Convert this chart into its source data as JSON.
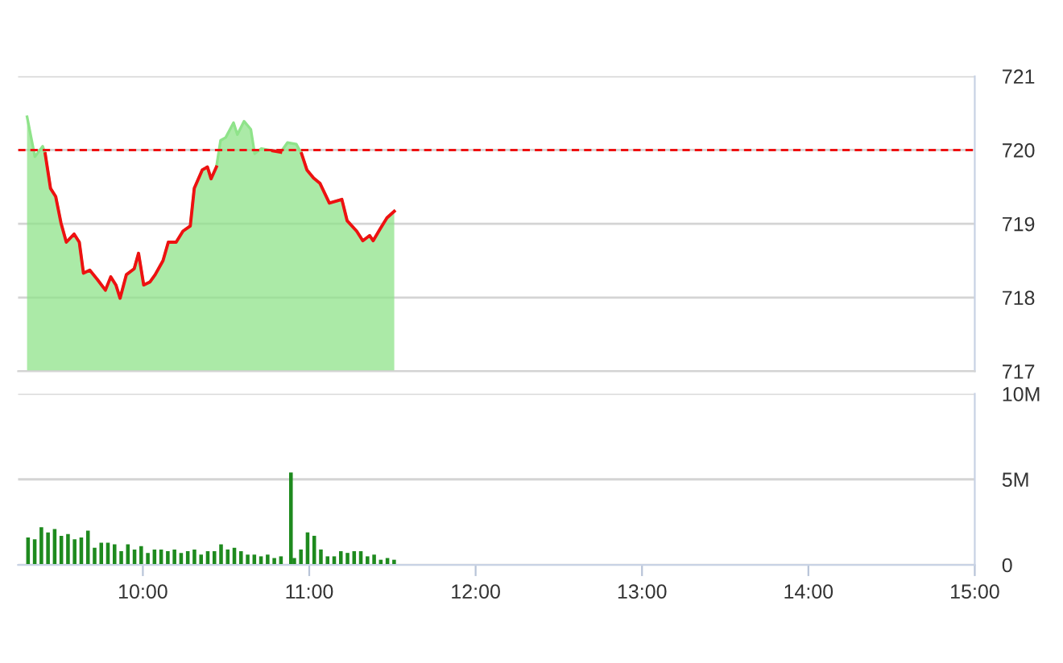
{
  "chart_data": [
    {
      "type": "area",
      "x": [
        9.304,
        9.351,
        9.398,
        9.413,
        9.445,
        9.476,
        9.508,
        9.54,
        9.587,
        9.618,
        9.643,
        9.681,
        9.728,
        9.775,
        9.807,
        9.838,
        9.863,
        9.901,
        9.948,
        9.974,
        10.005,
        10.042,
        10.074,
        10.121,
        10.153,
        10.2,
        10.241,
        10.285,
        10.309,
        10.357,
        10.388,
        10.41,
        10.442,
        10.467,
        10.498,
        10.545,
        10.568,
        10.608,
        10.649,
        10.672,
        10.712,
        10.781,
        10.828,
        10.869,
        10.922,
        10.954,
        10.986,
        11.026,
        11.064,
        11.121,
        11.196,
        11.228,
        11.285,
        11.322,
        11.363,
        11.384,
        11.426,
        11.467,
        11.511
      ],
      "series": [
        {
          "type": "area",
          "color": "#8fe38a",
          "values": [
            720.45,
            719.91,
            720.05,
            719.95,
            719.48,
            719.37,
            719.01,
            718.75,
            718.86,
            718.75,
            718.33,
            718.37,
            718.24,
            718.1,
            718.28,
            718.17,
            717.99,
            718.31,
            718.39,
            718.6,
            718.17,
            718.21,
            718.31,
            718.5,
            718.75,
            718.75,
            718.9,
            718.97,
            719.48,
            719.73,
            719.77,
            719.61,
            719.77,
            720.13,
            720.17,
            720.37,
            720.21,
            720.39,
            720.28,
            719.95,
            720.02,
            719.99,
            719.97,
            720.1,
            720.08,
            719.95,
            719.73,
            719.62,
            719.55,
            719.28,
            719.33,
            719.04,
            718.9,
            718.77,
            718.84,
            718.77,
            718.93,
            719.08,
            719.17
          ]
        },
        {
          "type": "line",
          "color": "#ee1111",
          "values": [
            null,
            null,
            null,
            719.95,
            719.48,
            719.37,
            719.01,
            718.75,
            718.86,
            718.75,
            718.33,
            718.37,
            718.24,
            718.1,
            718.28,
            718.17,
            717.99,
            718.31,
            718.39,
            718.6,
            718.17,
            718.21,
            718.31,
            718.5,
            718.75,
            718.75,
            718.9,
            718.97,
            719.48,
            719.73,
            719.77,
            719.61,
            719.77,
            null,
            null,
            null,
            null,
            null,
            null,
            null,
            null,
            719.99,
            719.97,
            null,
            null,
            719.95,
            719.73,
            719.62,
            719.55,
            719.28,
            719.33,
            719.04,
            718.9,
            718.77,
            718.84,
            718.77,
            718.93,
            719.08,
            719.17
          ]
        }
      ],
      "xlim": [
        9.25,
        15
      ],
      "ylim": [
        717,
        721
      ],
      "yticks": [
        717,
        718,
        719,
        720,
        721
      ],
      "ref_lines": [
        {
          "axis": "y",
          "value": 720,
          "color": "#ee1111",
          "line_style": "dashed"
        }
      ],
      "grid": "y",
      "tick_labels": "y",
      "marker": "none"
    },
    {
      "type": "bar",
      "x": [
        9.31,
        9.35,
        9.39,
        9.43,
        9.47,
        9.51,
        9.55,
        9.59,
        9.63,
        9.67,
        9.71,
        9.75,
        9.79,
        9.83,
        9.87,
        9.91,
        9.95,
        9.99,
        10.03,
        10.07,
        10.11,
        10.15,
        10.19,
        10.23,
        10.27,
        10.31,
        10.35,
        10.39,
        10.43,
        10.47,
        10.51,
        10.55,
        10.59,
        10.63,
        10.67,
        10.71,
        10.75,
        10.79,
        10.83,
        10.89,
        10.91,
        10.95,
        10.99,
        11.03,
        11.07,
        11.11,
        11.15,
        11.19,
        11.23,
        11.27,
        11.31,
        11.35,
        11.39,
        11.43,
        11.47,
        11.51
      ],
      "values": [
        1.6,
        1.5,
        2.2,
        1.9,
        2.1,
        1.7,
        1.8,
        1.5,
        1.6,
        2.0,
        1.0,
        1.3,
        1.3,
        1.2,
        0.8,
        1.2,
        0.9,
        1.1,
        0.7,
        0.9,
        0.9,
        0.8,
        0.9,
        0.7,
        0.8,
        0.9,
        0.6,
        0.8,
        0.8,
        1.2,
        0.9,
        1.0,
        0.8,
        0.6,
        0.6,
        0.5,
        0.6,
        0.4,
        0.5,
        5.4,
        0.4,
        0.9,
        1.9,
        1.7,
        0.9,
        0.5,
        0.5,
        0.8,
        0.7,
        0.8,
        0.8,
        0.5,
        0.6,
        0.3,
        0.4,
        0.3
      ],
      "color": "#1e8a1e",
      "xlim": [
        9.25,
        15
      ],
      "ylim": [
        0,
        10
      ],
      "xticks": [
        {
          "value": 10,
          "label": "10:00"
        },
        {
          "value": 11,
          "label": "11:00"
        },
        {
          "value": 12,
          "label": "12:00"
        },
        {
          "value": 13,
          "label": "13:00"
        },
        {
          "value": 14,
          "label": "14:00"
        },
        {
          "value": 15,
          "label": "15:00"
        }
      ],
      "yticks": [
        0,
        {
          "value": 5,
          "label": "5M"
        },
        {
          "value": 10,
          "label": "10M"
        }
      ],
      "grid": "y"
    }
  ]
}
